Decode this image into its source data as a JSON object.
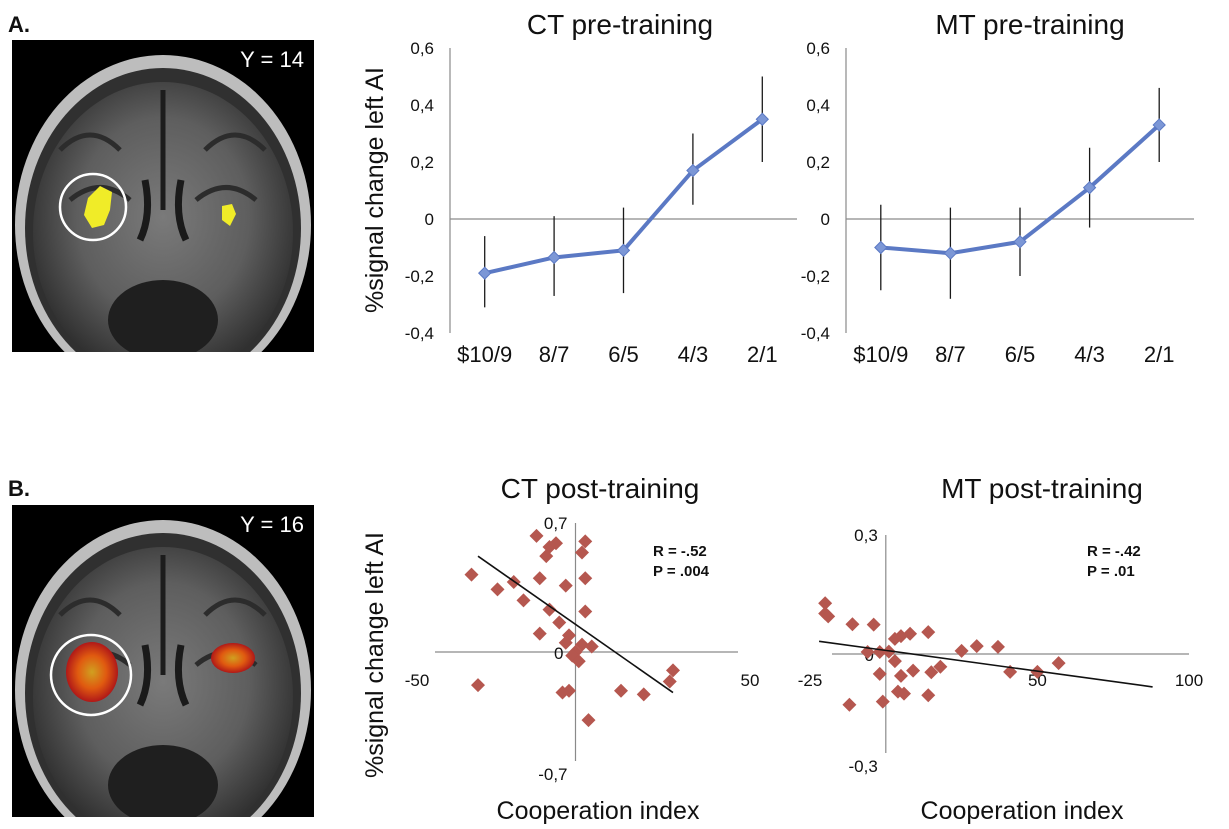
{
  "panels": {
    "a": {
      "letter": "A.",
      "coord": "Y = 14"
    },
    "b": {
      "letter": "B.",
      "coord": "Y = 16"
    }
  },
  "ylabel_a": "%signal change left AI",
  "ylabel_b": "%signal change left AI",
  "colors": {
    "line": "#5b79c4",
    "marker": "#7c97d6",
    "scatter": "#b5574f",
    "axis": "#8a8a8a"
  },
  "chart_data": [
    {
      "type": "line",
      "title": "CT pre-training",
      "categories": [
        "$10/9",
        "8/7",
        "6/5",
        "4/3",
        "2/1"
      ],
      "yticks": [
        "0,6",
        "0,4",
        "0,2",
        "0",
        "-0,2",
        "-0,4"
      ],
      "ylim": [
        -0.4,
        0.6
      ],
      "series": [
        {
          "values": [
            -0.19,
            -0.135,
            -0.11,
            0.17,
            0.35
          ],
          "err_low": [
            -0.31,
            -0.27,
            -0.26,
            0.05,
            0.2
          ],
          "err_high": [
            -0.06,
            0.01,
            0.04,
            0.3,
            0.5
          ]
        }
      ]
    },
    {
      "type": "line",
      "title": "MT pre-training",
      "categories": [
        "$10/9",
        "8/7",
        "6/5",
        "4/3",
        "2/1"
      ],
      "yticks": [
        "0,6",
        "0,4",
        "0,2",
        "0",
        "-0,2",
        "-0,4"
      ],
      "ylim": [
        -0.4,
        0.6
      ],
      "series": [
        {
          "values": [
            -0.1,
            -0.12,
            -0.08,
            0.11,
            0.33
          ],
          "err_low": [
            -0.25,
            -0.28,
            -0.2,
            -0.03,
            0.2
          ],
          "err_high": [
            0.05,
            0.04,
            0.04,
            0.25,
            0.46
          ]
        }
      ]
    },
    {
      "type": "scatter",
      "title": "CT post-training",
      "xlabel": "Cooperation index",
      "xlim": [
        -50,
        50
      ],
      "ylim": [
        -0.7,
        0.7
      ],
      "xtick_labels": {
        "left": "-50",
        "right": "50",
        "origin": "0"
      },
      "ytick_labels": {
        "top": "0,7",
        "bottom": "-0,7"
      },
      "stats": {
        "r": "R = -.52",
        "p": "P = .004"
      },
      "trend": {
        "x1": -30,
        "y1": 0.52,
        "x2": 30,
        "y2": -0.22
      },
      "points": [
        [
          -12,
          0.63
        ],
        [
          -8,
          0.57
        ],
        [
          -6,
          0.59
        ],
        [
          -9,
          0.52
        ],
        [
          3,
          0.6
        ],
        [
          2,
          0.54
        ],
        [
          -11,
          0.4
        ],
        [
          -19,
          0.38
        ],
        [
          -24,
          0.34
        ],
        [
          -32,
          0.42
        ],
        [
          -3,
          0.36
        ],
        [
          3,
          0.4
        ],
        [
          -16,
          0.28
        ],
        [
          -8,
          0.23
        ],
        [
          3,
          0.22
        ],
        [
          -5,
          0.16
        ],
        [
          -11,
          0.1
        ],
        [
          -2,
          0.09
        ],
        [
          -3,
          0.05
        ],
        [
          2,
          0.04
        ],
        [
          5,
          0.03
        ],
        [
          0,
          0.0
        ],
        [
          -1,
          -0.02
        ],
        [
          1,
          -0.05
        ],
        [
          -30,
          -0.18
        ],
        [
          -2,
          -0.21
        ],
        [
          -4,
          -0.22
        ],
        [
          14,
          -0.21
        ],
        [
          21,
          -0.23
        ],
        [
          30,
          -0.1
        ],
        [
          29,
          -0.16
        ],
        [
          4,
          -0.37
        ]
      ]
    },
    {
      "type": "scatter",
      "title": "MT post-training",
      "xlabel": "Cooperation index",
      "xlim": [
        -25,
        100
      ],
      "ylim": [
        -0.3,
        0.3
      ],
      "xtick_labels": {
        "left": "-25",
        "mid": "50",
        "right": "100",
        "origin": "0"
      },
      "ytick_labels": {
        "top": "0,3",
        "bottom": "-0,3"
      },
      "stats": {
        "r": "R = -.42",
        "p": "P = .01"
      },
      "trend": {
        "x1": -22,
        "y1": 0.032,
        "x2": 88,
        "y2": -0.083
      },
      "points": [
        [
          -20,
          0.128
        ],
        [
          -20,
          0.102
        ],
        [
          -19,
          0.095
        ],
        [
          -11,
          0.075
        ],
        [
          -4,
          0.074
        ],
        [
          8,
          0.051
        ],
        [
          5,
          0.045
        ],
        [
          3,
          0.038
        ],
        [
          14,
          0.055
        ],
        [
          30,
          0.02
        ],
        [
          37,
          0.018
        ],
        [
          25,
          0.008
        ],
        [
          -6,
          0.005
        ],
        [
          -2,
          0.005
        ],
        [
          1,
          0.006
        ],
        [
          3,
          -0.018
        ],
        [
          9,
          -0.042
        ],
        [
          15,
          -0.046
        ],
        [
          18,
          -0.032
        ],
        [
          5,
          -0.055
        ],
        [
          -2,
          -0.05
        ],
        [
          41,
          -0.045
        ],
        [
          50,
          -0.045
        ],
        [
          57,
          -0.023
        ],
        [
          -12,
          -0.128
        ],
        [
          4,
          -0.095
        ],
        [
          6,
          -0.1
        ],
        [
          14,
          -0.104
        ],
        [
          -1,
          -0.12
        ]
      ]
    }
  ]
}
